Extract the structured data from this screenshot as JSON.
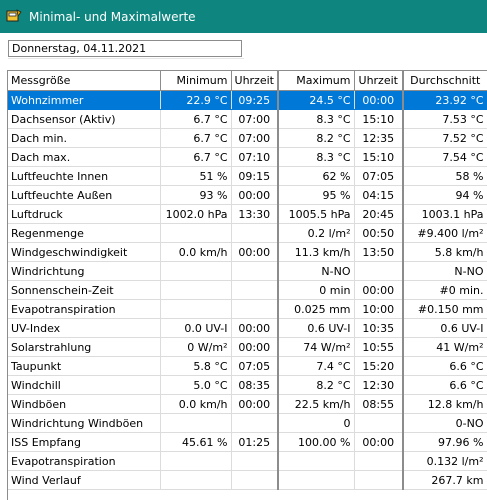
{
  "window": {
    "title": "Minimal- und Maximalwerte",
    "icon": "app-icon"
  },
  "date_field": {
    "value": "Donnerstag, 04.11.2021"
  },
  "table": {
    "columns": [
      "Messgröße",
      "Minimum",
      "Uhrzeit",
      "Maximum",
      "Uhrzeit",
      "Durchschnitt"
    ],
    "rows": [
      [
        "Wohnzimmer",
        "22.9 °C",
        "09:25",
        "24.5 °C",
        "00:00",
        "23.92 °C"
      ],
      [
        "Dachsensor (Aktiv)",
        "6.7 °C",
        "07:00",
        "8.3 °C",
        "15:10",
        "7.53 °C"
      ],
      [
        "Dach min.",
        "6.7 °C",
        "07:00",
        "8.2 °C",
        "12:35",
        "7.52 °C"
      ],
      [
        "Dach max.",
        "6.7 °C",
        "07:10",
        "8.3 °C",
        "15:10",
        "7.54 °C"
      ],
      [
        "Luftfeuchte Innen",
        "51 %",
        "09:15",
        "62 %",
        "07:05",
        "58 %"
      ],
      [
        "Luftfeuchte Außen",
        "93 %",
        "00:00",
        "95 %",
        "04:15",
        "94 %"
      ],
      [
        "Luftdruck",
        "1002.0 hPa",
        "13:30",
        "1005.5 hPa",
        "20:45",
        "1003.1 hPa"
      ],
      [
        "Regenmenge",
        "",
        "",
        "0.2 l/m²",
        "00:50",
        "#9.400 l/m²"
      ],
      [
        "Windgeschwindigkeit",
        "0.0 km/h",
        "00:00",
        "11.3 km/h",
        "13:50",
        "5.8 km/h"
      ],
      [
        "Windrichtung",
        "",
        "",
        "N-NO",
        "",
        "N-NO"
      ],
      [
        "Sonnenschein-Zeit",
        "",
        "",
        "0 min",
        "00:00",
        "#0 min."
      ],
      [
        "Evapotranspiration",
        "",
        "",
        "0.025 mm",
        "10:00",
        "#0.150 mm"
      ],
      [
        "UV-Index",
        "0.0 UV-I",
        "00:00",
        "0.6 UV-I",
        "10:35",
        "0.6 UV-I"
      ],
      [
        "Solarstrahlung",
        "0 W/m²",
        "00:00",
        "74 W/m²",
        "10:55",
        "41 W/m²"
      ],
      [
        "Taupunkt",
        "5.8 °C",
        "07:05",
        "7.4 °C",
        "15:20",
        "6.6 °C"
      ],
      [
        "Windchill",
        "5.0 °C",
        "08:35",
        "8.2 °C",
        "12:30",
        "6.6 °C"
      ],
      [
        "Windböen",
        "0.0 km/h",
        "00:00",
        "22.5 km/h",
        "08:55",
        "12.8 km/h"
      ],
      [
        "Windrichtung Windböen",
        "",
        "",
        "0",
        "",
        "0-NO"
      ],
      [
        "ISS Empfang",
        "45.61 %",
        "01:25",
        "100.00 %",
        "00:00",
        "97.96 %"
      ],
      [
        "Evapotranspiration",
        "",
        "",
        "",
        "",
        "0.132 l/m²"
      ],
      [
        "Wind Verlauf",
        "",
        "",
        "",
        "",
        "267.7 km"
      ]
    ],
    "selected_row": 0
  },
  "colors": {
    "titlebar": "#0f857f",
    "selection": "#0078d7"
  }
}
